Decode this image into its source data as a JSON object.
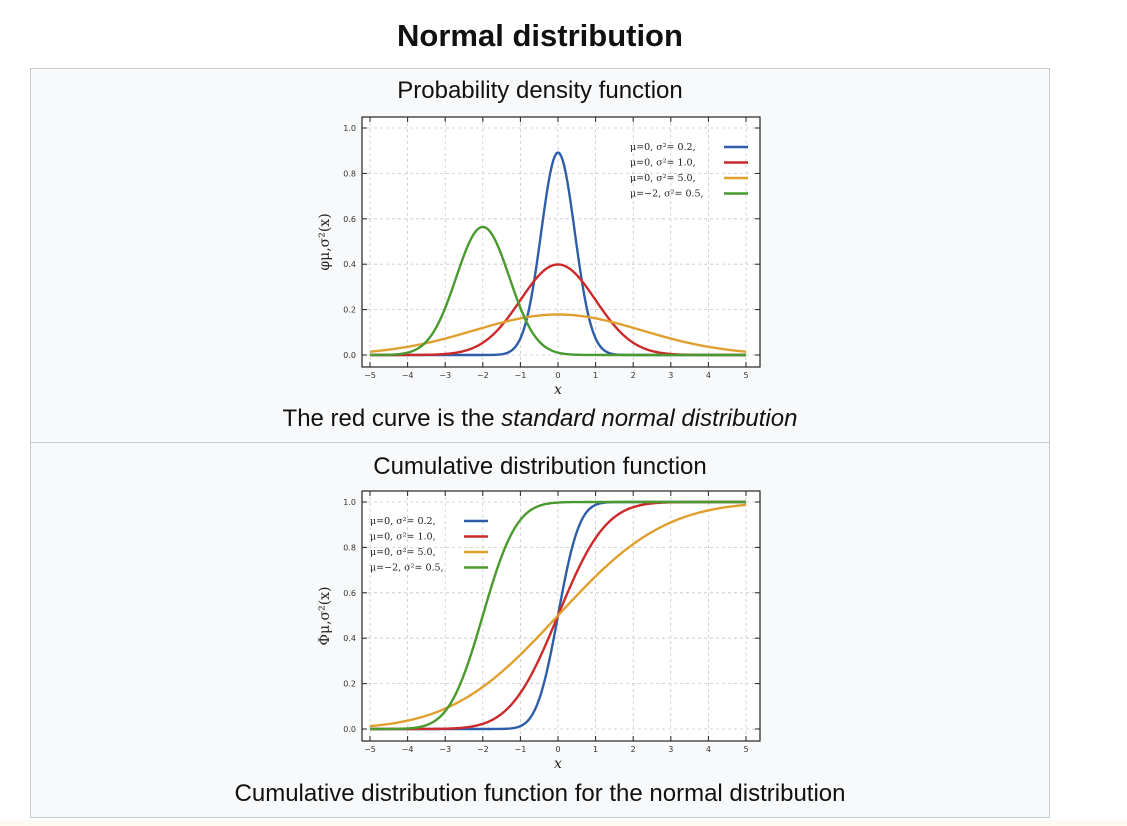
{
  "title": "Normal distribution",
  "pdf_panel": {
    "heading": "Probability density function",
    "caption_prefix": "The red curve is the ",
    "caption_emphasis": "standard normal distribution",
    "y_axis_label": "φμ,σ²(x)",
    "x_axis_label": "x"
  },
  "cdf_panel": {
    "heading": "Cumulative distribution function",
    "caption": "Cumulative distribution function for the normal distribution",
    "y_axis_label": "Φμ,σ²(x)",
    "x_axis_label": "x"
  },
  "series_styles": [
    {
      "color": "#2f5ea8"
    },
    {
      "color": "#cc2a2a"
    },
    {
      "color": "#e0a030"
    },
    {
      "color": "#4a9a30"
    }
  ],
  "chart_data": [
    {
      "type": "line",
      "title": "Probability density function",
      "xlabel": "x",
      "ylabel": "φμ,σ²(x)",
      "xlim": [
        -5,
        5
      ],
      "ylim": [
        0,
        1.0
      ],
      "x_ticks": [
        -5,
        -4,
        -3,
        -2,
        -1,
        0,
        1,
        2,
        3,
        4,
        5
      ],
      "y_ticks": [
        0.0,
        0.2,
        0.4,
        0.6,
        0.8,
        1.0
      ],
      "y_tick_labels": [
        "0.0",
        "0.2",
        "0.4",
        "0.6",
        "0.8",
        "1.0"
      ],
      "legend_position": "top-right",
      "x": [
        -5,
        -4,
        -3,
        -2.5,
        -2,
        -1.5,
        -1,
        -0.5,
        0,
        0.5,
        1,
        1.5,
        2,
        3,
        4,
        5
      ],
      "series": [
        {
          "name": "μ=0,   σ²= 0.2,",
          "values": [
            0.0,
            0.0,
            0.0,
            0.0,
            0.0,
            0.0,
            0.07,
            0.47,
            0.89,
            0.47,
            0.07,
            0.0,
            0.0,
            0.0,
            0.0,
            0.0
          ]
        },
        {
          "name": "μ=0,   σ²= 1.0,",
          "values": [
            0.0,
            0.0,
            0.0,
            0.02,
            0.05,
            0.13,
            0.24,
            0.35,
            0.4,
            0.35,
            0.24,
            0.13,
            0.05,
            0.0,
            0.0,
            0.0
          ]
        },
        {
          "name": "μ=0,   σ²= 5.0,",
          "values": [
            0.01,
            0.04,
            0.07,
            0.09,
            0.12,
            0.14,
            0.16,
            0.17,
            0.18,
            0.17,
            0.16,
            0.14,
            0.12,
            0.07,
            0.04,
            0.01
          ]
        },
        {
          "name": "μ=−2,  σ²= 0.5,",
          "values": [
            0.0,
            0.02,
            0.21,
            0.44,
            0.56,
            0.44,
            0.21,
            0.06,
            0.01,
            0.0,
            0.0,
            0.0,
            0.0,
            0.0,
            0.0,
            0.0
          ]
        }
      ]
    },
    {
      "type": "line",
      "title": "Cumulative distribution function",
      "xlabel": "x",
      "ylabel": "Φμ,σ²(x)",
      "xlim": [
        -5,
        5
      ],
      "ylim": [
        0,
        1.0
      ],
      "x_ticks": [
        -5,
        -4,
        -3,
        -2,
        -1,
        0,
        1,
        2,
        3,
        4,
        5
      ],
      "y_ticks": [
        0.0,
        0.2,
        0.4,
        0.6,
        0.8,
        1.0
      ],
      "y_tick_labels": [
        "0.0",
        "0.2",
        "0.4",
        "0.6",
        "0.8",
        "1.0"
      ],
      "legend_position": "top-left",
      "x": [
        -5,
        -4,
        -3,
        -2.5,
        -2,
        -1.5,
        -1,
        -0.5,
        0,
        0.5,
        1,
        1.5,
        2,
        3,
        4,
        5
      ],
      "series": [
        {
          "name": "μ=0,   σ²= 0.2,",
          "values": [
            0.0,
            0.0,
            0.0,
            0.0,
            0.0,
            0.0,
            0.01,
            0.13,
            0.5,
            0.87,
            0.99,
            1.0,
            1.0,
            1.0,
            1.0,
            1.0
          ]
        },
        {
          "name": "μ=0,   σ²= 1.0,",
          "values": [
            0.0,
            0.0,
            0.0,
            0.01,
            0.02,
            0.07,
            0.16,
            0.31,
            0.5,
            0.69,
            0.84,
            0.93,
            0.98,
            1.0,
            1.0,
            1.0
          ]
        },
        {
          "name": "μ=0,   σ²= 5.0,",
          "values": [
            0.01,
            0.04,
            0.09,
            0.13,
            0.19,
            0.25,
            0.33,
            0.41,
            0.5,
            0.59,
            0.67,
            0.75,
            0.81,
            0.91,
            0.96,
            0.99
          ]
        },
        {
          "name": "μ=−2,  σ²= 0.5,",
          "values": [
            0.0,
            0.0,
            0.08,
            0.24,
            0.5,
            0.76,
            0.92,
            0.98,
            1.0,
            1.0,
            1.0,
            1.0,
            1.0,
            1.0,
            1.0,
            1.0
          ]
        }
      ]
    }
  ]
}
